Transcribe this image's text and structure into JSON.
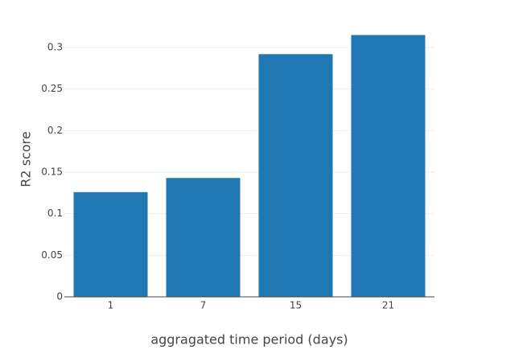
{
  "chart_data": {
    "type": "bar",
    "xlabel": "aggragated time period (days)",
    "ylabel": "R2 score",
    "categories": [
      "1",
      "7",
      "15",
      "21"
    ],
    "values": [
      0.126,
      0.143,
      0.292,
      0.315
    ],
    "color": "#1f77b4",
    "ylim": [
      0,
      0.332
    ],
    "yticks": [
      0,
      0.05,
      0.1,
      0.15,
      0.2,
      0.25,
      0.3
    ],
    "grid": true
  }
}
